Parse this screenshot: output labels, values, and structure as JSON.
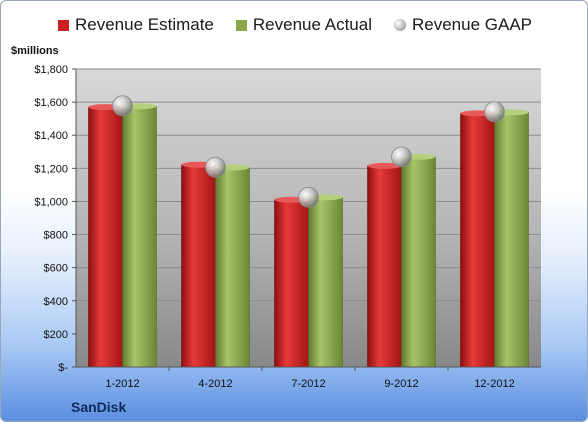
{
  "chart_data": {
    "type": "bar",
    "categories": [
      "1-2012",
      "4-2012",
      "7-2012",
      "9-2012",
      "12-2012"
    ],
    "series": [
      {
        "name": "Revenue Estimate",
        "values": [
          1570,
          1222,
          1010,
          1215,
          1532
        ],
        "color": "#cc1f1f"
      },
      {
        "name": "Revenue Actual",
        "values": [
          1575,
          1205,
          1025,
          1270,
          1538
        ],
        "color": "#8aa64a"
      },
      {
        "name": "Revenue GAAP",
        "values": [
          1578,
          1207,
          1025,
          1270,
          1542
        ],
        "marker": "bubble",
        "color": "#b8b8b8"
      }
    ],
    "yticks": [
      "$-",
      "$200",
      "$400",
      "$600",
      "$800",
      "$1,000",
      "$1,200",
      "$1,400",
      "$1,600",
      "$1,800"
    ],
    "ylim": [
      0,
      1800
    ],
    "ylabel": "$millions",
    "legend_position": "top",
    "grid": true
  },
  "company": "SanDisk"
}
